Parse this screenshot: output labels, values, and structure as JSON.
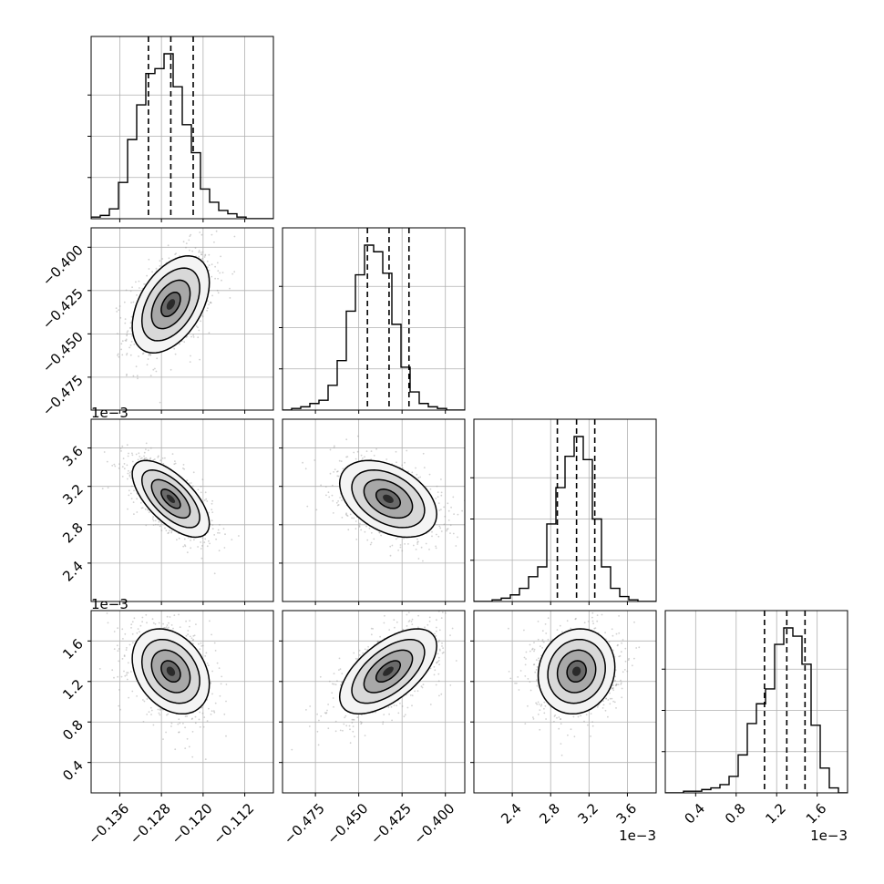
{
  "chart_data": {
    "type": "corner",
    "title": "",
    "parameters": 4,
    "colors": {
      "line": "#000000",
      "grid": "#b0b0b0",
      "samples": "#9a9a9a",
      "density_dark": "#000000",
      "density_light": "#ffffff"
    },
    "grid": true,
    "ranges": [
      [
        -0.1415,
        -0.1065
      ],
      [
        -0.494,
        -0.3888
      ],
      [
        0.002,
        0.0039
      ],
      [
        0.0001,
        0.0019
      ]
    ],
    "ticks": [
      [
        -0.136,
        -0.128,
        -0.12,
        -0.112
      ],
      [
        -0.475,
        -0.45,
        -0.425,
        -0.4
      ],
      [
        0.0024,
        0.0028,
        0.0032,
        0.0036
      ],
      [
        0.0004,
        0.0008,
        0.0012,
        0.0016
      ]
    ],
    "tick_labels": [
      [
        "−0.136",
        "−0.128",
        "−0.120",
        "−0.112"
      ],
      [
        "−0.475",
        "−0.450",
        "−0.425",
        "−0.400"
      ],
      [
        "2.4",
        "2.8",
        "3.2",
        "3.6"
      ],
      [
        "0.4",
        "0.8",
        "1.2",
        "1.6"
      ]
    ],
    "offset_text": [
      "",
      "",
      "1e−3",
      "1e−3"
    ],
    "marginals": [
      {
        "bin_start": -0.1415,
        "bin_width": 0.00175,
        "counts": [
          1,
          2,
          6,
          22,
          48,
          69,
          88,
          91,
          100,
          80,
          57,
          40,
          18,
          10,
          5,
          3,
          1,
          0,
          0,
          0
        ],
        "quantiles": [
          -0.1305,
          -0.1262,
          -0.1219
        ]
      },
      {
        "bin_start": -0.494,
        "bin_width": 0.00526,
        "counts": [
          0,
          1,
          2,
          4,
          6,
          15,
          30,
          60,
          82,
          100,
          96,
          83,
          52,
          26,
          11,
          4,
          2,
          1,
          0,
          0
        ],
        "quantiles": [
          -0.445,
          -0.4325,
          -0.421
        ]
      },
      {
        "bin_start": 0.002,
        "bin_width": 9.5e-05,
        "counts": [
          0,
          0,
          1,
          2,
          4,
          8,
          15,
          21,
          47,
          69,
          88,
          100,
          86,
          50,
          21,
          8,
          3,
          1,
          0,
          0
        ],
        "quantiles": [
          0.00287,
          0.00307,
          0.00326
        ]
      },
      {
        "bin_start": 0.0001,
        "bin_width": 9e-05,
        "counts": [
          0,
          0,
          1,
          1,
          2,
          3,
          5,
          10,
          23,
          42,
          54,
          63,
          90,
          100,
          95,
          78,
          41,
          15,
          3,
          0
        ],
        "quantiles": [
          0.00108,
          0.0013,
          0.00148
        ]
      }
    ],
    "joint": [
      {
        "x_param": 0,
        "y_param": 1,
        "mean": [
          -0.1262,
          -0.433
        ],
        "sd": [
          0.0037,
          0.014
        ],
        "rho": 0.45
      },
      {
        "x_param": 0,
        "y_param": 2,
        "mean": [
          -0.1262,
          0.00307
        ],
        "sd": [
          0.0037,
          0.0002
        ],
        "rho": -0.65
      },
      {
        "x_param": 1,
        "y_param": 2,
        "mean": [
          -0.433,
          0.00307
        ],
        "sd": [
          0.014,
          0.0002
        ],
        "rho": -0.4
      },
      {
        "x_param": 0,
        "y_param": 3,
        "mean": [
          -0.1262,
          0.0013
        ],
        "sd": [
          0.0037,
          0.00021
        ],
        "rho": -0.3
      },
      {
        "x_param": 1,
        "y_param": 3,
        "mean": [
          -0.433,
          0.0013
        ],
        "sd": [
          0.014,
          0.00021
        ],
        "rho": 0.6
      },
      {
        "x_param": 2,
        "y_param": 3,
        "mean": [
          0.00307,
          0.0013
        ],
        "sd": [
          0.0002,
          0.00021
        ],
        "rho": 0.1
      }
    ],
    "contour_levels_sigma": [
      0.5,
      1.0,
      1.5,
      2.0
    ]
  }
}
